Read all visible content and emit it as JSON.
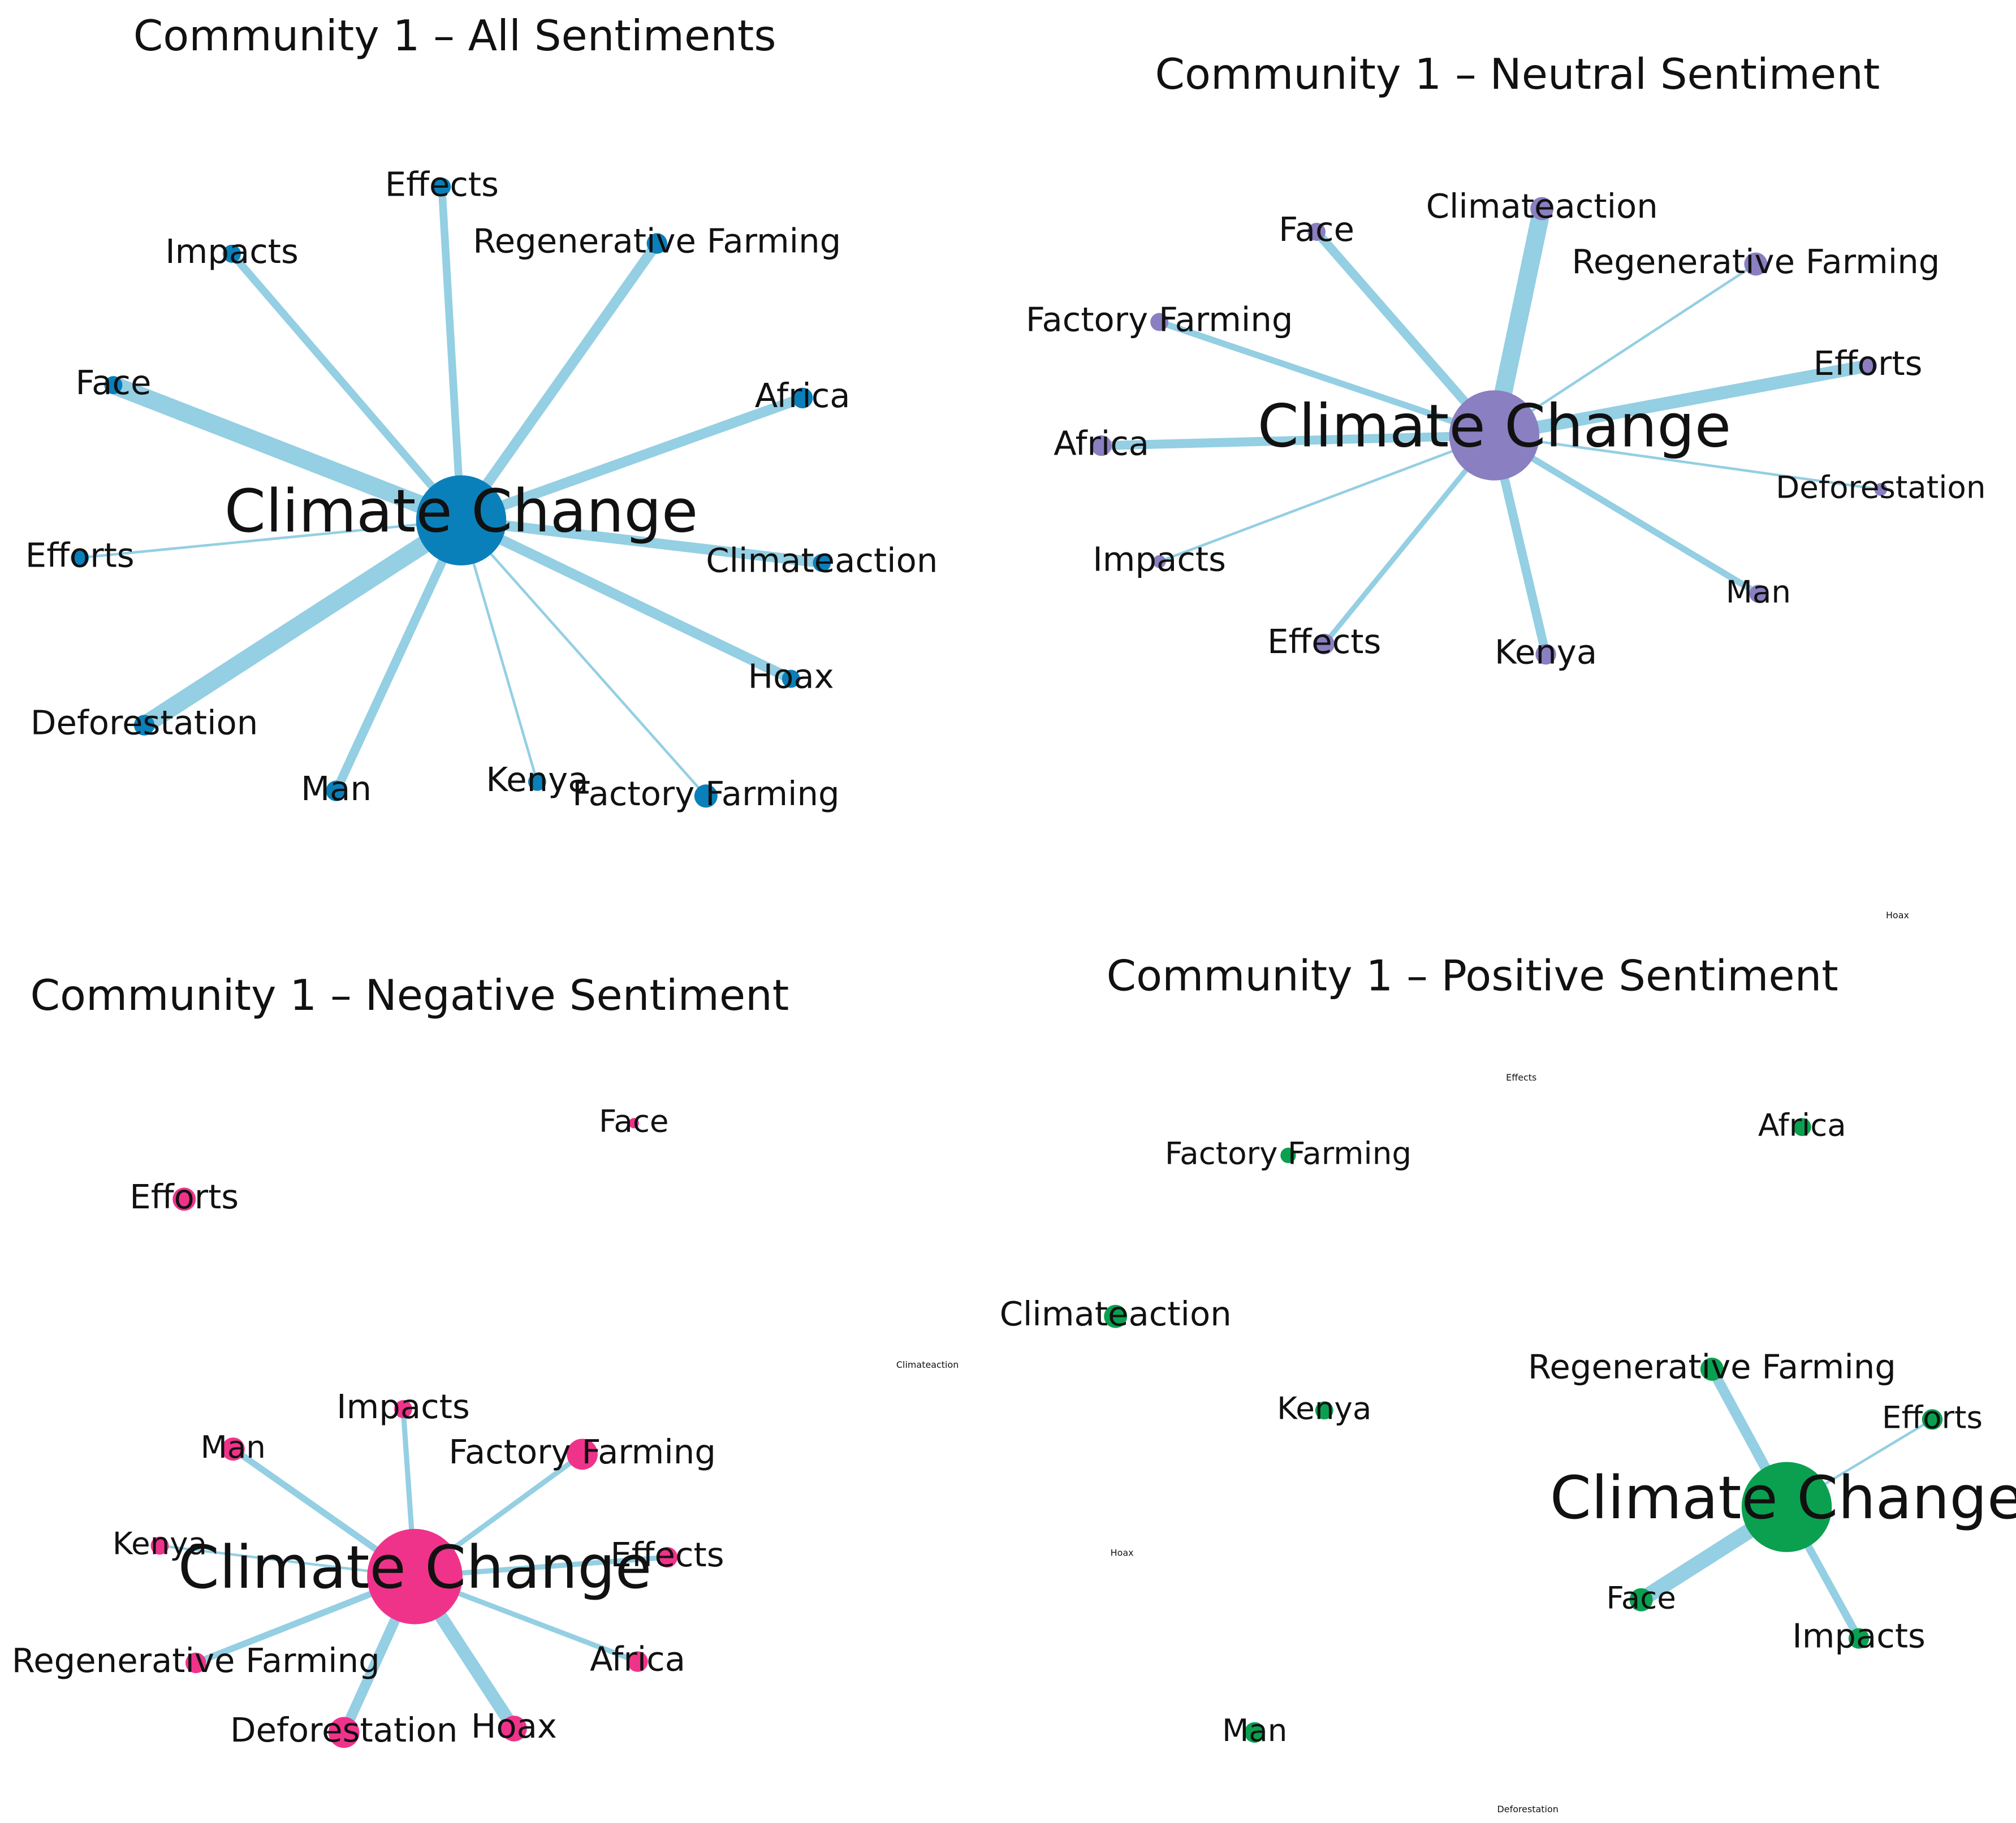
{
  "panels": [
    {
      "title": "Community 1 – All Sentiments",
      "center": "Climate Change",
      "nodes": [
        "Effects",
        "Impacts",
        "Regenerative Farming",
        "Face",
        "Africa",
        "Efforts",
        "Climateaction",
        "Hoax",
        "Deforestation",
        "Man",
        "Kenya",
        "Factory Farming"
      ]
    },
    {
      "title": "Community 1 – Neutral Sentiment",
      "center": "Climate Change",
      "nodes": [
        "Climateaction",
        "Face",
        "Regenerative Farming",
        "Factory Farming",
        "Efforts",
        "Africa",
        "Deforestation",
        "Impacts",
        "Man",
        "Effects",
        "Kenya",
        "Hoax"
      ]
    },
    {
      "title": "Community 1 – Negative Sentiment",
      "center": "Climate Change",
      "nodes": [
        "Face",
        "Efforts",
        "Impacts",
        "Man",
        "Factory Farming",
        "Kenya",
        "Effects",
        "Regenerative Farming",
        "Africa",
        "Deforestation",
        "Hoax"
      ]
    },
    {
      "title": "Community 1 – Positive Sentiment",
      "center": "Climate Change",
      "nodes": [
        "Effects",
        "Factory Farming",
        "Africa",
        "Climateaction",
        "Climateaction",
        "Kenya",
        "Regenerative Farming",
        "Efforts",
        "Hoax",
        "Face",
        "Impacts",
        "Man",
        "Deforestation"
      ]
    }
  ]
}
